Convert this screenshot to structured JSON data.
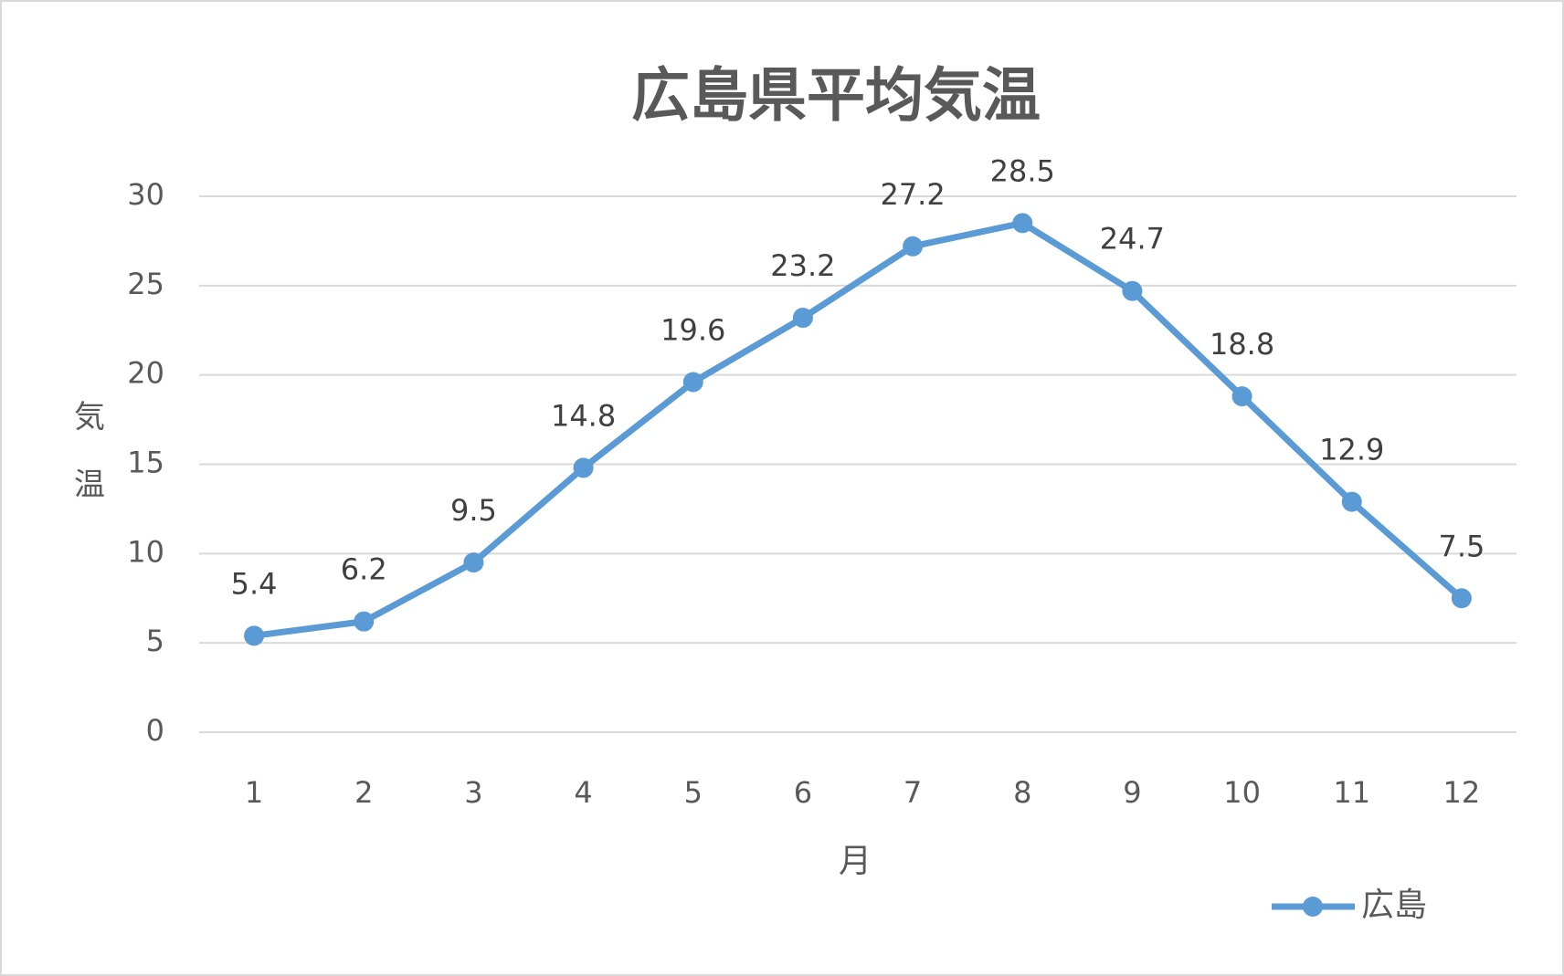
{
  "chart_data": {
    "type": "line",
    "title": "広島県平均気温",
    "x_label": "月",
    "y_label": "気温",
    "categories": [
      "1",
      "2",
      "3",
      "4",
      "5",
      "6",
      "7",
      "8",
      "9",
      "10",
      "11",
      "12"
    ],
    "series": [
      {
        "name": "広島",
        "color": "#5b9bd5",
        "values": [
          5.4,
          6.2,
          9.5,
          14.8,
          19.6,
          23.2,
          27.2,
          28.5,
          24.7,
          18.8,
          12.9,
          7.5
        ]
      }
    ],
    "ylim": [
      0,
      30
    ],
    "yticks": [
      0,
      5,
      10,
      15,
      20,
      25,
      30
    ],
    "grid": true,
    "legend": "bottom-right"
  }
}
